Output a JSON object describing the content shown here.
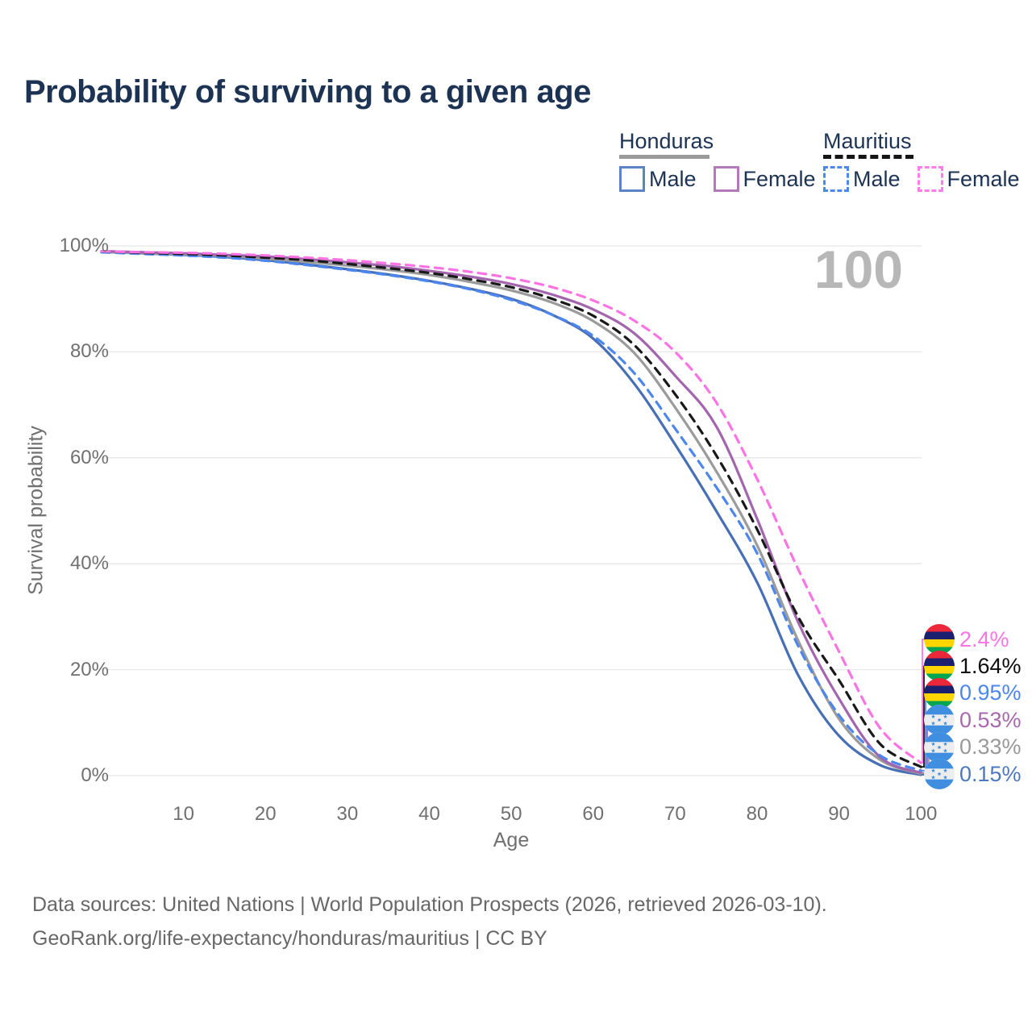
{
  "title": "Probability of surviving to a given age",
  "watermark": "100",
  "legend": {
    "honduras": {
      "header": "Honduras",
      "male_label": "Male",
      "female_label": "Female",
      "header_line_color": "#9a9a9a",
      "header_line_style": "solid",
      "male_swatch_color": "#5b84c6",
      "female_swatch_color": "#b27ab8"
    },
    "mauritius": {
      "header": "Mauritius",
      "male_label": "Male",
      "female_label": "Female",
      "header_line_color": "#151515",
      "header_line_style": "dashed",
      "male_swatch_color": "#4c86ee",
      "female_swatch_color": "#fc7ce8"
    }
  },
  "y_axis": {
    "title": "Survival probability",
    "tick_values": [
      0,
      20,
      40,
      60,
      80,
      100
    ],
    "tick_labels": [
      "0%",
      "20%",
      "40%",
      "60%",
      "80%",
      "100%"
    ]
  },
  "x_axis": {
    "title": "Age",
    "tick_values": [
      10,
      20,
      30,
      40,
      50,
      60,
      70,
      80,
      90,
      100
    ]
  },
  "end_labels": [
    {
      "label": "2.4%",
      "series": "Mauritius Female",
      "flag": "mauritius",
      "text_color": "#fb74e4"
    },
    {
      "label": "1.64%",
      "series": "Mauritius Total",
      "flag": "mauritius",
      "text_color": "#0d0d0d"
    },
    {
      "label": "0.95%",
      "series": "Mauritius Male",
      "flag": "mauritius",
      "text_color": "#4c86ee"
    },
    {
      "label": "0.53%",
      "series": "Honduras Female",
      "flag": "honduras",
      "text_color": "#a868ae"
    },
    {
      "label": "0.33%",
      "series": "Honduras Total",
      "flag": "honduras",
      "text_color": "#999999"
    },
    {
      "label": "0.15%",
      "series": "Honduras Male",
      "flag": "honduras",
      "text_color": "#4d78c0"
    }
  ],
  "flag_colors": {
    "mauritius": {
      "red": "#EA2839",
      "blue": "#1A206D",
      "yellow": "#FFD500",
      "green": "#00A551"
    },
    "honduras": {
      "blue": "#3f8ee0",
      "white": "#ededed"
    }
  },
  "footer": {
    "line1": "Data sources: United Nations | World Population Prospects (2026, retrieved 2026-03-10).",
    "line2": "GeoRank.org/life-expectancy/honduras/mauritius | CC BY"
  },
  "chart_data": {
    "type": "line",
    "title": "Probability of surviving to a given age",
    "xlabel": "Age",
    "ylabel": "Survival probability",
    "xlim": [
      0,
      100
    ],
    "ylim": [
      0,
      100
    ],
    "grid": "horizontal-only",
    "legend_position": "top-right",
    "x": [
      0,
      5,
      10,
      15,
      20,
      25,
      30,
      35,
      40,
      45,
      50,
      55,
      60,
      65,
      70,
      75,
      80,
      85,
      90,
      95,
      100
    ],
    "series": [
      {
        "name": "Honduras Male",
        "color": "#466fb6",
        "dash": "solid",
        "values": [
          98.9,
          98.6,
          98.3,
          97.9,
          97.3,
          96.5,
          95.6,
          94.6,
          93.4,
          91.9,
          90.0,
          87.0,
          82.5,
          74.0,
          62.5,
          50.0,
          36.5,
          19.0,
          7.5,
          2.0,
          0.15
        ]
      },
      {
        "name": "Honduras Total",
        "color": "#9b9b9b",
        "dash": "solid",
        "values": [
          98.9,
          98.6,
          98.4,
          98.1,
          97.6,
          97.0,
          96.3,
          95.5,
          94.5,
          93.2,
          91.6,
          89.3,
          85.8,
          79.8,
          69.5,
          57.5,
          43.5,
          25.5,
          10.7,
          3.0,
          0.33
        ]
      },
      {
        "name": "Honduras Female",
        "color": "#a365ad",
        "dash": "solid",
        "values": [
          99.0,
          98.8,
          98.6,
          98.3,
          98.0,
          97.5,
          96.9,
          96.2,
          95.3,
          94.2,
          92.8,
          90.8,
          88.0,
          83.5,
          75.5,
          66.0,
          48.5,
          29.0,
          14.5,
          3.5,
          0.53
        ]
      },
      {
        "name": "Mauritius Male",
        "color": "#4c86ee",
        "dash": "dashed",
        "values": [
          98.8,
          98.5,
          98.2,
          97.8,
          97.2,
          96.4,
          95.5,
          94.5,
          93.3,
          91.8,
          89.8,
          87.0,
          83.0,
          76.0,
          65.5,
          54.5,
          42.0,
          24.5,
          11.4,
          3.8,
          0.95
        ]
      },
      {
        "name": "Mauritius Total",
        "color": "#191919",
        "dash": "dashed",
        "values": [
          99.0,
          98.7,
          98.5,
          98.2,
          97.8,
          97.3,
          96.6,
          95.8,
          94.9,
          93.7,
          92.2,
          90.0,
          86.8,
          81.3,
          72.0,
          60.5,
          46.5,
          30.0,
          18.0,
          6.0,
          1.64
        ]
      },
      {
        "name": "Mauritius Female",
        "color": "#fc74e4",
        "dash": "dashed",
        "values": [
          99.0,
          98.8,
          98.7,
          98.5,
          98.2,
          97.8,
          97.3,
          96.7,
          96.0,
          95.1,
          93.9,
          92.2,
          89.7,
          85.9,
          80.0,
          70.5,
          56.0,
          39.0,
          23.4,
          9.0,
          2.4
        ]
      }
    ]
  }
}
